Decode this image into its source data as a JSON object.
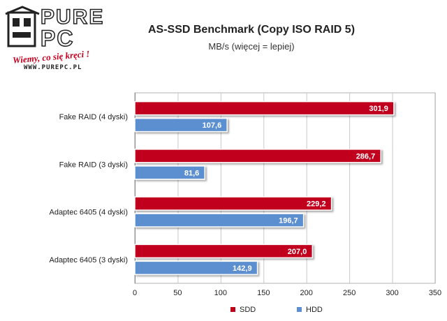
{
  "logo": {
    "line1": "PURE",
    "line2": "PC",
    "tagline": "Wiemy, co się kręci !",
    "url": "WWW.PUREPC.PL"
  },
  "chart_data": {
    "type": "bar",
    "orientation": "horizontal",
    "title": "AS-SSD Benchmark (Copy ISO RAID 5)",
    "subtitle": "MB/s (więcej = lepiej)",
    "categories": [
      "Fake RAID (4 dyski)",
      "Fake RAID (3 dyski)",
      "Adaptec 6405 (4 dyski)",
      "Adaptec 6405 (3 dyski)"
    ],
    "series": [
      {
        "name": "SDD",
        "color": "#c0001a",
        "values": [
          301.9,
          286.7,
          229.2,
          207.0
        ],
        "labels": [
          "301,9",
          "286,7",
          "229,2",
          "207,0"
        ]
      },
      {
        "name": "HDD",
        "color": "#5b8fd0",
        "values": [
          107.6,
          81.6,
          196.7,
          142.9
        ],
        "labels": [
          "107,6",
          "81,6",
          "196,7",
          "142,9"
        ]
      }
    ],
    "xlim": [
      0,
      350
    ],
    "xticks": [
      0,
      50,
      100,
      150,
      200,
      250,
      300,
      350
    ],
    "grid": true,
    "legend": "bottom"
  }
}
